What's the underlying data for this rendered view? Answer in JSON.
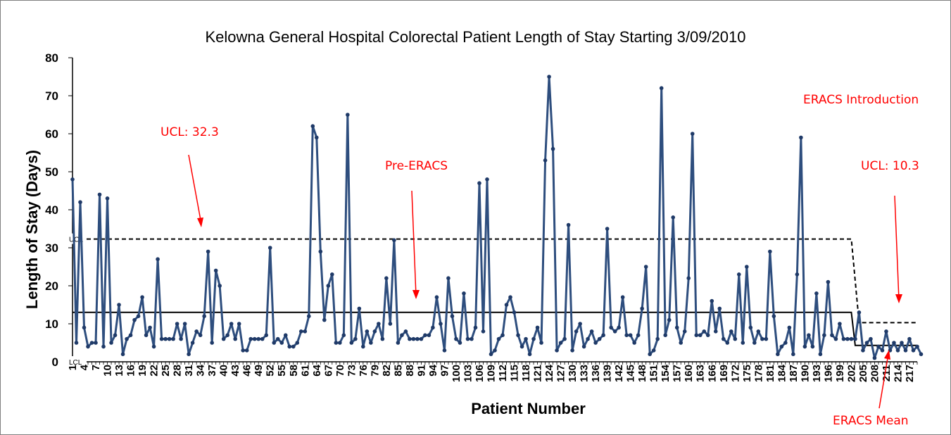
{
  "chart_data": {
    "type": "line",
    "title": "Kelowna General Hospital Colorectal Patient Length of Stay Starting 3/09/2010",
    "xlabel": "Patient Number",
    "ylabel": "Length of Stay (Days)",
    "ylim": [
      0,
      80
    ],
    "yticks": [
      "0",
      "10",
      "20",
      "30",
      "40",
      "50",
      "60",
      "70",
      "80"
    ],
    "xlim": [
      1,
      219
    ],
    "xtick_start": 1,
    "xtick_step": 3,
    "values": [
      48,
      5,
      42,
      9,
      4,
      5,
      5,
      44,
      4,
      43,
      5,
      7,
      15,
      2,
      6,
      7,
      11,
      12,
      17,
      7,
      9,
      4,
      27,
      6,
      6,
      6,
      6,
      10,
      6,
      10,
      2,
      5,
      8,
      7,
      12,
      29,
      5,
      24,
      20,
      6,
      7,
      10,
      6,
      10,
      3,
      3,
      6,
      6,
      6,
      6,
      7,
      30,
      5,
      6,
      5,
      7,
      4,
      4,
      5,
      8,
      8,
      12,
      62,
      59,
      29,
      11,
      20,
      23,
      5,
      5,
      7,
      65,
      5,
      6,
      14,
      4,
      8,
      5,
      8,
      10,
      6,
      22,
      10,
      32,
      5,
      7,
      8,
      6,
      6,
      6,
      6,
      7,
      7,
      9,
      17,
      10,
      3,
      22,
      12,
      6,
      5,
      18,
      6,
      6,
      9,
      47,
      8,
      48,
      2,
      3,
      6,
      7,
      15,
      17,
      13,
      7,
      4,
      6,
      2,
      6,
      9,
      5,
      53,
      75,
      56,
      3,
      5,
      6,
      36,
      3,
      8,
      10,
      4,
      6,
      8,
      5,
      6,
      7,
      35,
      9,
      8,
      9,
      17,
      7,
      7,
      5,
      7,
      14,
      25,
      2,
      3,
      6,
      72,
      7,
      11,
      38,
      9,
      5,
      8,
      22,
      60,
      7,
      7,
      8,
      7,
      16,
      8,
      14,
      6,
      5,
      8,
      6,
      23,
      5,
      25,
      9,
      5,
      8,
      6,
      6,
      29,
      12,
      2,
      4,
      5,
      9,
      2,
      23,
      59,
      4,
      7,
      4,
      18,
      2,
      7,
      21,
      7,
      6,
      10,
      6,
      6,
      6,
      6,
      13,
      3,
      5,
      6,
      1,
      4,
      3,
      8,
      3,
      5,
      3,
      5,
      3,
      6,
      3,
      4,
      2
    ],
    "center_line": {
      "pre_value": 13,
      "post_value": 4.3,
      "break_patient": 202,
      "post_start_patient": 203
    },
    "ucl_line": {
      "pre_value": 32.3,
      "post_value": 10.3,
      "break_patient": 202,
      "post_start_patient": 204
    },
    "lcl_value": 0,
    "limit_labels": {
      "ucl": "UCL",
      "lcl": "LCL"
    },
    "annotations": {
      "ucl_pre": "UCL: 32.3",
      "pre_eracs": "Pre-ERACS",
      "eracs_intro": "ERACS Introduction",
      "ucl_post": "UCL: 10.3",
      "eracs_mean": "ERACS Mean"
    },
    "colors": {
      "series": "#2e4e7e",
      "marker": "#1f3a68",
      "center": "#000000",
      "annotation": "#ff0000"
    }
  }
}
